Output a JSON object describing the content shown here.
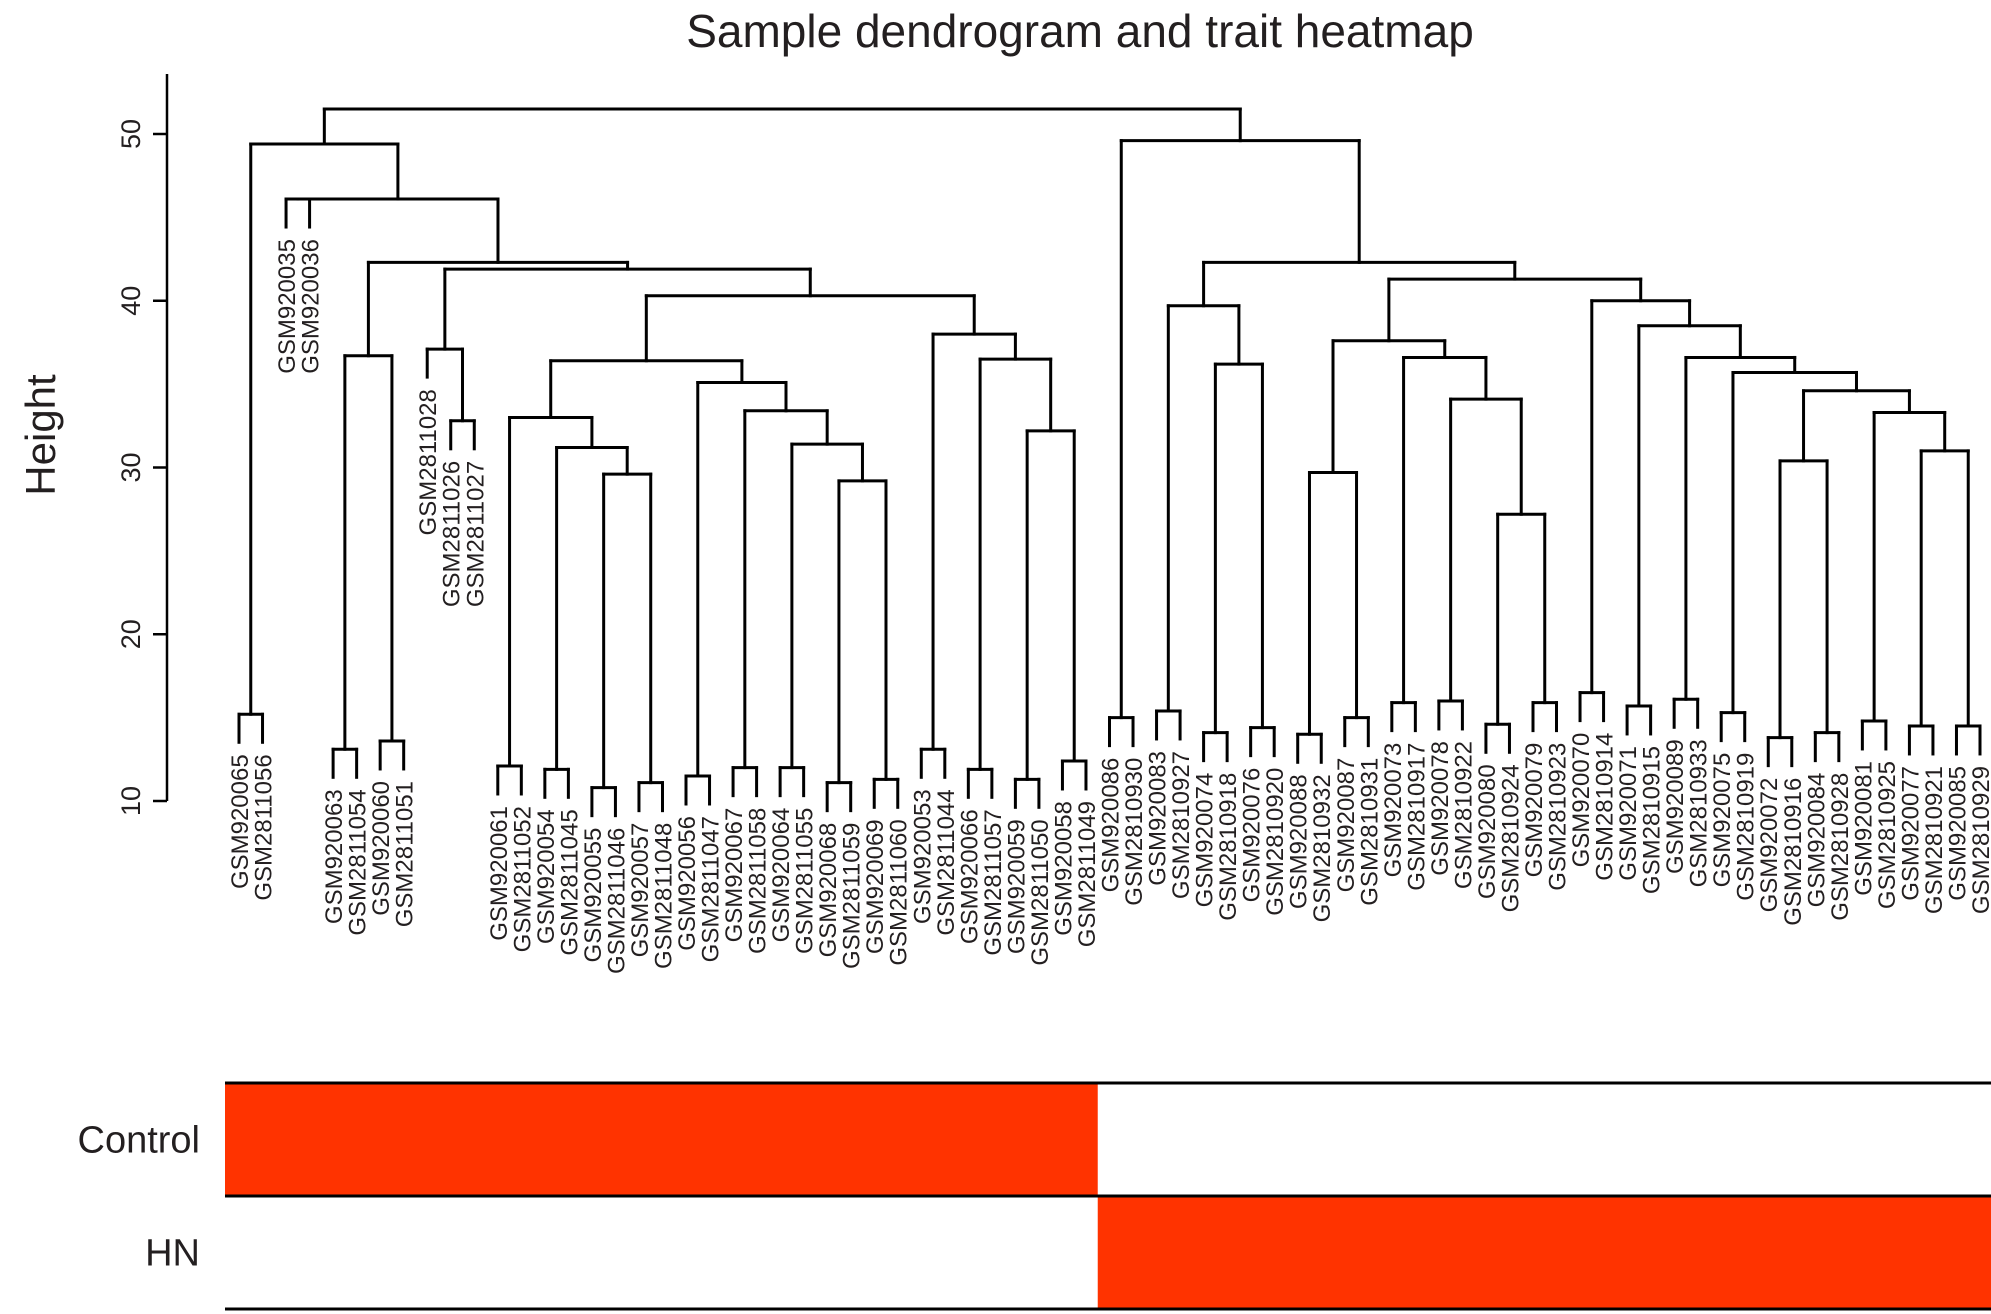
{
  "chart_data": {
    "type": "dendrogram",
    "title": "Sample dendrogram and trait heatmap",
    "ylabel": "Height",
    "ylim": [
      10,
      53
    ],
    "yticks": [
      10,
      20,
      30,
      40,
      50
    ],
    "heatmap_color": "#ff3300",
    "samples": [
      "GSM920065",
      "GSM2811056",
      "GSM920035",
      "GSM920036",
      "GSM920063",
      "GSM2811054",
      "GSM920060",
      "GSM2811051",
      "GSM2811028",
      "GSM2811026",
      "GSM2811027",
      "GSM920061",
      "GSM2811052",
      "GSM920054",
      "GSM2811045",
      "GSM920055",
      "GSM2811046",
      "GSM920057",
      "GSM2811048",
      "GSM920056",
      "GSM2811047",
      "GSM920067",
      "GSM2811058",
      "GSM920064",
      "GSM2811055",
      "GSM920068",
      "GSM2811059",
      "GSM920069",
      "GSM2811060",
      "GSM920053",
      "GSM2811044",
      "GSM920066",
      "GSM2811057",
      "GSM920059",
      "GSM2811050",
      "GSM920058",
      "GSM2811049",
      "GSM920086",
      "GSM2810930",
      "GSM920083",
      "GSM2810927",
      "GSM920074",
      "GSM2810918",
      "GSM920076",
      "GSM2810920",
      "GSM920088",
      "GSM2810932",
      "GSM920087",
      "GSM2810931",
      "GSM920073",
      "GSM2810917",
      "GSM920078",
      "GSM2810922",
      "GSM920080",
      "GSM2810924",
      "GSM920079",
      "GSM2810923",
      "GSM920070",
      "GSM2810914",
      "GSM920071",
      "GSM2810915",
      "GSM920089",
      "GSM2810933",
      "GSM920075",
      "GSM2810919",
      "GSM920072",
      "GSM2810916",
      "GSM920084",
      "GSM2810928",
      "GSM920081",
      "GSM2810925",
      "GSM920077",
      "GSM2810921",
      "GSM920085",
      "GSM2810929"
    ],
    "merges": [
      {
        "l": 0,
        "r": 1,
        "h": 15.2
      },
      {
        "l": 4,
        "r": 5,
        "h": 13.1
      },
      {
        "l": 6,
        "r": 7,
        "h": 13.6
      },
      {
        "l": "m1",
        "r": "m2",
        "h": 36.7
      },
      {
        "l": 9,
        "r": 10,
        "h": 32.8
      },
      {
        "l": 8,
        "r": "m4",
        "h": 37.1
      },
      {
        "l": 11,
        "r": 12,
        "h": 12.1
      },
      {
        "l": 13,
        "r": 14,
        "h": 11.9
      },
      {
        "l": 15,
        "r": 16,
        "h": 10.8
      },
      {
        "l": 17,
        "r": 18,
        "h": 11.1
      },
      {
        "l": "m8",
        "r": "m9",
        "h": 29.6
      },
      {
        "l": "m7",
        "r": "m10",
        "h": 31.2
      },
      {
        "l": "m6",
        "r": "m11",
        "h": 33.0
      },
      {
        "l": 19,
        "r": 20,
        "h": 11.5
      },
      {
        "l": 21,
        "r": 22,
        "h": 12.0
      },
      {
        "l": 23,
        "r": 24,
        "h": 12.0
      },
      {
        "l": 25,
        "r": 26,
        "h": 11.1
      },
      {
        "l": 27,
        "r": 28,
        "h": 11.3
      },
      {
        "l": "m16",
        "r": "m17",
        "h": 29.2
      },
      {
        "l": "m15",
        "r": "m18",
        "h": 31.4
      },
      {
        "l": "m14",
        "r": "m19",
        "h": 33.4
      },
      {
        "l": "m13",
        "r": "m20",
        "h": 35.1
      },
      {
        "l": "m12",
        "r": "m21",
        "h": 36.4
      },
      {
        "l": 29,
        "r": 30,
        "h": 13.1
      },
      {
        "l": 31,
        "r": 32,
        "h": 11.9
      },
      {
        "l": 33,
        "r": 34,
        "h": 11.3
      },
      {
        "l": 35,
        "r": 36,
        "h": 12.4
      },
      {
        "l": "m25",
        "r": "m26",
        "h": 32.2
      },
      {
        "l": "m24",
        "r": "m27",
        "h": 36.5
      },
      {
        "l": "m23",
        "r": "m28",
        "h": 38.0
      },
      {
        "l": "m22",
        "r": "m29",
        "h": 40.3
      },
      {
        "l": "m5",
        "r": "m30",
        "h": 41.9
      },
      {
        "l": "m3",
        "r": "m31",
        "h": 42.3
      },
      {
        "l": 2,
        "r": 3,
        "h": 46.1
      },
      {
        "l": "m33",
        "r": "m32",
        "h": 46.1
      },
      {
        "l": "m0",
        "r": "m34",
        "h": 49.4
      },
      {
        "l": 37,
        "r": 38,
        "h": 15.0
      },
      {
        "l": 39,
        "r": 40,
        "h": 15.4
      },
      {
        "l": 41,
        "r": 42,
        "h": 14.1
      },
      {
        "l": 43,
        "r": 44,
        "h": 14.4
      },
      {
        "l": "m38",
        "r": "m39",
        "h": 36.2
      },
      {
        "l": "m37",
        "r": "m40",
        "h": 39.7
      },
      {
        "l": 45,
        "r": 46,
        "h": 14.0
      },
      {
        "l": 47,
        "r": 48,
        "h": 15.0
      },
      {
        "l": "m42",
        "r": "m43",
        "h": 29.7
      },
      {
        "l": 49,
        "r": 50,
        "h": 15.9
      },
      {
        "l": 51,
        "r": 52,
        "h": 16.0
      },
      {
        "l": 53,
        "r": 54,
        "h": 14.6
      },
      {
        "l": 55,
        "r": 56,
        "h": 15.9
      },
      {
        "l": "m47",
        "r": "m48",
        "h": 27.2
      },
      {
        "l": "m46",
        "r": "m49",
        "h": 34.1
      },
      {
        "l": "m45",
        "r": "m50",
        "h": 36.6
      },
      {
        "l": "m44",
        "r": "m51",
        "h": 37.6
      },
      {
        "l": 57,
        "r": 58,
        "h": 16.5
      },
      {
        "l": 59,
        "r": 60,
        "h": 15.7
      },
      {
        "l": 61,
        "r": 62,
        "h": 16.1
      },
      {
        "l": 63,
        "r": 64,
        "h": 15.3
      },
      {
        "l": 65,
        "r": 66,
        "h": 13.8
      },
      {
        "l": 67,
        "r": 68,
        "h": 14.1
      },
      {
        "l": "m57",
        "r": "m58",
        "h": 30.4
      },
      {
        "l": 69,
        "r": 70,
        "h": 14.8
      },
      {
        "l": 71,
        "r": 72,
        "h": 14.5
      },
      {
        "l": 73,
        "r": 74,
        "h": 14.5
      },
      {
        "l": "m61",
        "r": "m62",
        "h": 31.0
      },
      {
        "l": "m60",
        "r": "m63",
        "h": 33.3
      },
      {
        "l": "m59",
        "r": "m64",
        "h": 34.6
      },
      {
        "l": "m65",
        "r": "m56",
        "h": 35.7
      },
      {
        "l": "m66",
        "r": "m55",
        "h": 36.6
      },
      {
        "l": "m67",
        "r": "m54",
        "h": 38.5
      },
      {
        "l": "m68",
        "r": "m53",
        "h": 40.0
      },
      {
        "l": "m52",
        "r": "m69",
        "h": 41.3
      },
      {
        "l": "m41",
        "r": "m70",
        "h": 42.3
      },
      {
        "l": "m36",
        "r": "m71",
        "h": 49.6
      },
      {
        "l": "m35",
        "r": "m72",
        "h": 51.5
      }
    ],
    "traits": [
      {
        "name": "Control",
        "start": 0,
        "end": 36
      },
      {
        "name": "HN",
        "start": 37,
        "end": 74
      }
    ]
  }
}
